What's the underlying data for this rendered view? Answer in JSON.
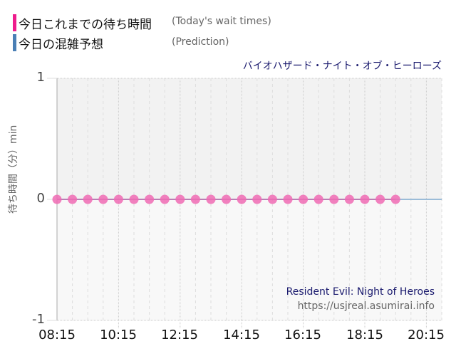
{
  "legend": {
    "items": [
      {
        "label_jp": "今日これまでの待ち時間",
        "label_en": "(Today's wait times)",
        "color": "#ee1c8c"
      },
      {
        "label_jp": "今日の混雑予想",
        "label_en": "(Prediction)",
        "color": "#4a7fb5"
      }
    ]
  },
  "attraction": {
    "name_jp": "バイオハザード・ナイト・オブ・ヒーローズ",
    "name_en": "Resident Evil: Night of Heroes",
    "site_url": "https://usjreal.asumirai.info"
  },
  "chart_data": {
    "type": "line",
    "title": "バイオハザード・ナイト・オブ・ヒーローズ",
    "xlabel": "",
    "ylabel": "待ち時間（分）min",
    "ylim": [
      -1,
      1
    ],
    "yticks": [
      "1",
      "0",
      "-1"
    ],
    "xticks": [
      "08:15",
      "10:15",
      "12:15",
      "14:15",
      "16:15",
      "18:15",
      "20:15"
    ],
    "xrange": [
      "08:15",
      "20:45"
    ],
    "grid": true,
    "legend_position": "top-left",
    "series": [
      {
        "name": "今日これまでの待ち時間 (Today's wait times)",
        "color": "#f06bb4",
        "x": [
          "08:15",
          "08:45",
          "09:15",
          "09:45",
          "10:15",
          "10:45",
          "11:15",
          "11:45",
          "12:15",
          "12:45",
          "13:15",
          "13:45",
          "14:15",
          "14:45",
          "15:15",
          "15:45",
          "16:15",
          "16:45",
          "17:15",
          "17:45",
          "18:15",
          "18:45",
          "19:15"
        ],
        "values": [
          0,
          0,
          0,
          0,
          0,
          0,
          0,
          0,
          0,
          0,
          0,
          0,
          0,
          0,
          0,
          0,
          0,
          0,
          0,
          0,
          0,
          0,
          0
        ]
      },
      {
        "name": "今日の混雑予想 (Prediction)",
        "color": "#9bbcd8",
        "x": [
          "08:15",
          "20:45"
        ],
        "values": [
          0,
          0
        ]
      }
    ]
  }
}
